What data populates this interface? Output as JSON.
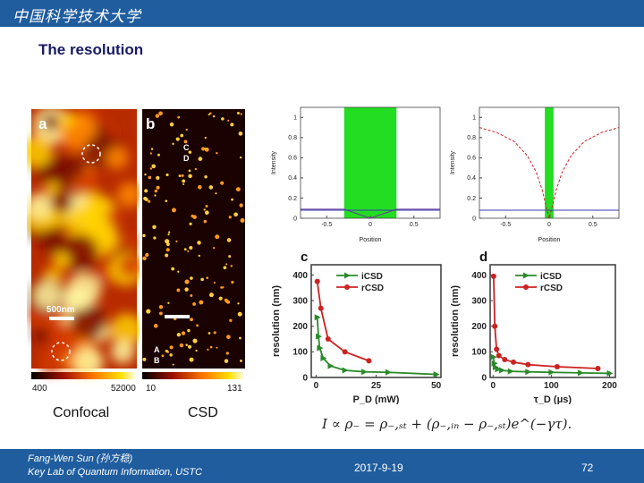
{
  "header": {
    "logo_text": "中国科学技术大学"
  },
  "slide": {
    "title": "The resolution"
  },
  "images": {
    "a": {
      "letter": "a",
      "scale": "500nm",
      "marks": [
        "",
        ""
      ],
      "cmin": "400",
      "cmax": "52000",
      "heat_colors": [
        "#7a1000",
        "#d23a00",
        "#ff8a00",
        "#ffd000",
        "#fff7a0"
      ]
    },
    "b": {
      "letter": "b",
      "cmin": "10",
      "cmax": "131",
      "marks_top": [
        "C",
        "D"
      ],
      "marks_bot": [
        "A",
        "B"
      ]
    }
  },
  "captions": {
    "left": "Confocal",
    "right": "CSD"
  },
  "formula": "I ∝ ρ₋ = ρ₋,ₛₜ + (ρ₋,ᵢₙ − ρ₋,ₛₜ)e^(−γτ).",
  "footer": {
    "author": "Fang-Wen Sun (孙方稳)",
    "affiliation": "Key Lab of Quantum Information, USTC",
    "date": "2017-9-19",
    "page": "72"
  },
  "chart_data": [
    {
      "type": "line",
      "panel": "top-left",
      "xlabel": "Position",
      "ylabel": "Intensity",
      "xticks": [
        "-0.5",
        "0",
        "0.5"
      ],
      "yticks": [
        "0",
        "0.2",
        "0.4",
        "0.6",
        "0.8",
        "1"
      ],
      "xlim": [
        -0.8,
        0.8
      ],
      "ylim": [
        0,
        1.1
      ],
      "highlight": {
        "x0": -0.3,
        "x1": 0.3,
        "color": "#22dd22"
      },
      "series": [
        {
          "color": "#6a3a9a",
          "points": [
            [
              -0.8,
              0.09
            ],
            [
              -0.3,
              0.09
            ],
            [
              0,
              0.0
            ],
            [
              0.3,
              0.09
            ],
            [
              0.8,
              0.09
            ]
          ]
        },
        {
          "color": "#3a3ab0",
          "points": [
            [
              -0.8,
              0.08
            ],
            [
              0.8,
              0.08
            ]
          ]
        }
      ]
    },
    {
      "type": "line",
      "panel": "top-right",
      "xlabel": "Position",
      "ylabel": "Intensity",
      "xticks": [
        "-0.5",
        "0",
        "0.5"
      ],
      "yticks": [
        "0",
        "0.2",
        "0.4",
        "0.6",
        "0.8",
        "1"
      ],
      "xlim": [
        -0.8,
        0.8
      ],
      "ylim": [
        0,
        1.1
      ],
      "highlight": {
        "x0": -0.05,
        "x1": 0.05,
        "color": "#22dd22"
      },
      "series": [
        {
          "color": "#cc2222",
          "dashed": true,
          "points": [
            [
              -0.8,
              0.9
            ],
            [
              -0.6,
              0.85
            ],
            [
              -0.4,
              0.76
            ],
            [
              -0.25,
              0.62
            ],
            [
              -0.15,
              0.46
            ],
            [
              -0.08,
              0.28
            ],
            [
              -0.03,
              0.1
            ],
            [
              0,
              0.0
            ],
            [
              0.03,
              0.1
            ],
            [
              0.08,
              0.28
            ],
            [
              0.15,
              0.46
            ],
            [
              0.25,
              0.62
            ],
            [
              0.4,
              0.76
            ],
            [
              0.6,
              0.85
            ],
            [
              0.8,
              0.9
            ]
          ]
        },
        {
          "color": "#3a3ab0",
          "points": [
            [
              -0.8,
              0.08
            ],
            [
              0.8,
              0.08
            ]
          ]
        }
      ]
    },
    {
      "type": "line",
      "panel": "c",
      "letter": "c",
      "xlabel": "P_D (mW)",
      "ylabel": "resolution (nm)",
      "xticks": [
        "0",
        "25",
        "50"
      ],
      "yticks": [
        "0",
        "100",
        "200",
        "300",
        "400"
      ],
      "xlim": [
        -2,
        52
      ],
      "ylim": [
        0,
        440
      ],
      "legend": [
        "iCSD",
        "rCSD"
      ],
      "series": [
        {
          "name": "iCSD",
          "color": "#2a8a2a",
          "marker": "triangle",
          "x": [
            0.5,
            1,
            1.5,
            3,
            6,
            12,
            20,
            30,
            50
          ],
          "y": [
            235,
            160,
            115,
            75,
            45,
            28,
            22,
            20,
            12
          ]
        },
        {
          "name": "rCSD",
          "color": "#cc2222",
          "marker": "circle",
          "x": [
            0.5,
            2,
            5,
            12,
            22
          ],
          "y": [
            375,
            270,
            150,
            100,
            65
          ]
        }
      ]
    },
    {
      "type": "line",
      "panel": "d",
      "letter": "d",
      "xlabel": "τ_D (μs)",
      "ylabel": "resolution (nm)",
      "xticks": [
        "0",
        "100",
        "200"
      ],
      "yticks": [
        "0",
        "100",
        "200",
        "300",
        "400"
      ],
      "xlim": [
        -5,
        210
      ],
      "ylim": [
        0,
        440
      ],
      "legend": [
        "iCSD",
        "rCSD"
      ],
      "series": [
        {
          "name": "iCSD",
          "color": "#2a8a2a",
          "marker": "triangle",
          "x": [
            0.5,
            2,
            4,
            8,
            15,
            30,
            60,
            100,
            150,
            200
          ],
          "y": [
            80,
            55,
            40,
            32,
            28,
            24,
            22,
            20,
            18,
            16
          ]
        },
        {
          "name": "rCSD",
          "color": "#cc2222",
          "marker": "circle",
          "x": [
            1,
            3,
            6,
            10,
            20,
            35,
            60,
            110,
            180
          ],
          "y": [
            395,
            200,
            110,
            85,
            70,
            60,
            50,
            42,
            35
          ]
        }
      ]
    }
  ]
}
